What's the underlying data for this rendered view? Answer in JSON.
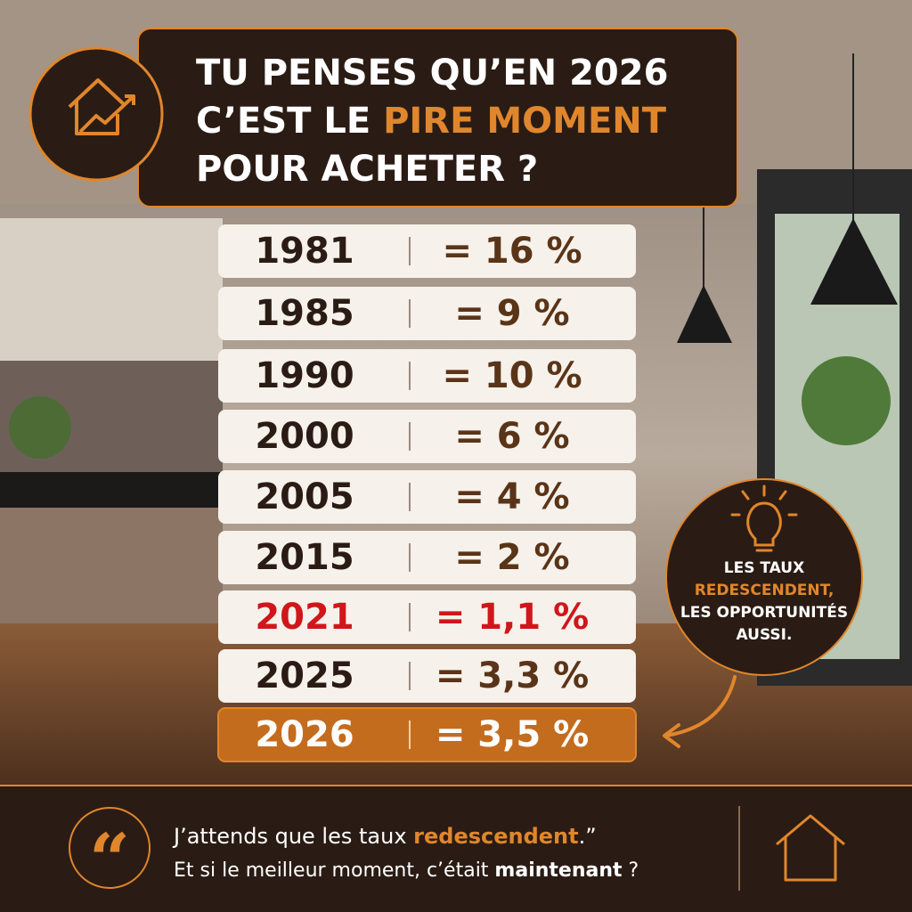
{
  "header": {
    "line1": "TU PENSES QU’EN 2026",
    "line2": [
      "C’EST LE ",
      "PIRE MOMENT"
    ],
    "line3": "POUR ACHETER ?"
  },
  "table": {
    "rows": [
      [
        "1981",
        "= 16 %"
      ],
      [
        "1985",
        "= 9 %"
      ],
      [
        "1990",
        "= 10 %"
      ],
      [
        "2000",
        "= 6 %"
      ],
      [
        "2005",
        "= 4 %"
      ],
      [
        "2015",
        "= 2 %"
      ],
      [
        "2021",
        "= 1,1 %"
      ],
      [
        "2025",
        "= 3,3 %"
      ],
      [
        "2026",
        "= 3,5 %"
      ]
    ]
  },
  "callout": {
    "lines": [
      "LES TAUX",
      "REDESCENDENT,",
      "LES OPPORTUNITÉS",
      "AUSSI."
    ]
  },
  "footer": {
    "quote_mark": "“",
    "line1": [
      "J’attends que les taux ",
      "redescendent",
      ".”"
    ],
    "line2": [
      "Et si le meilleur moment, c’était ",
      "maintenant",
      " ?"
    ]
  }
}
